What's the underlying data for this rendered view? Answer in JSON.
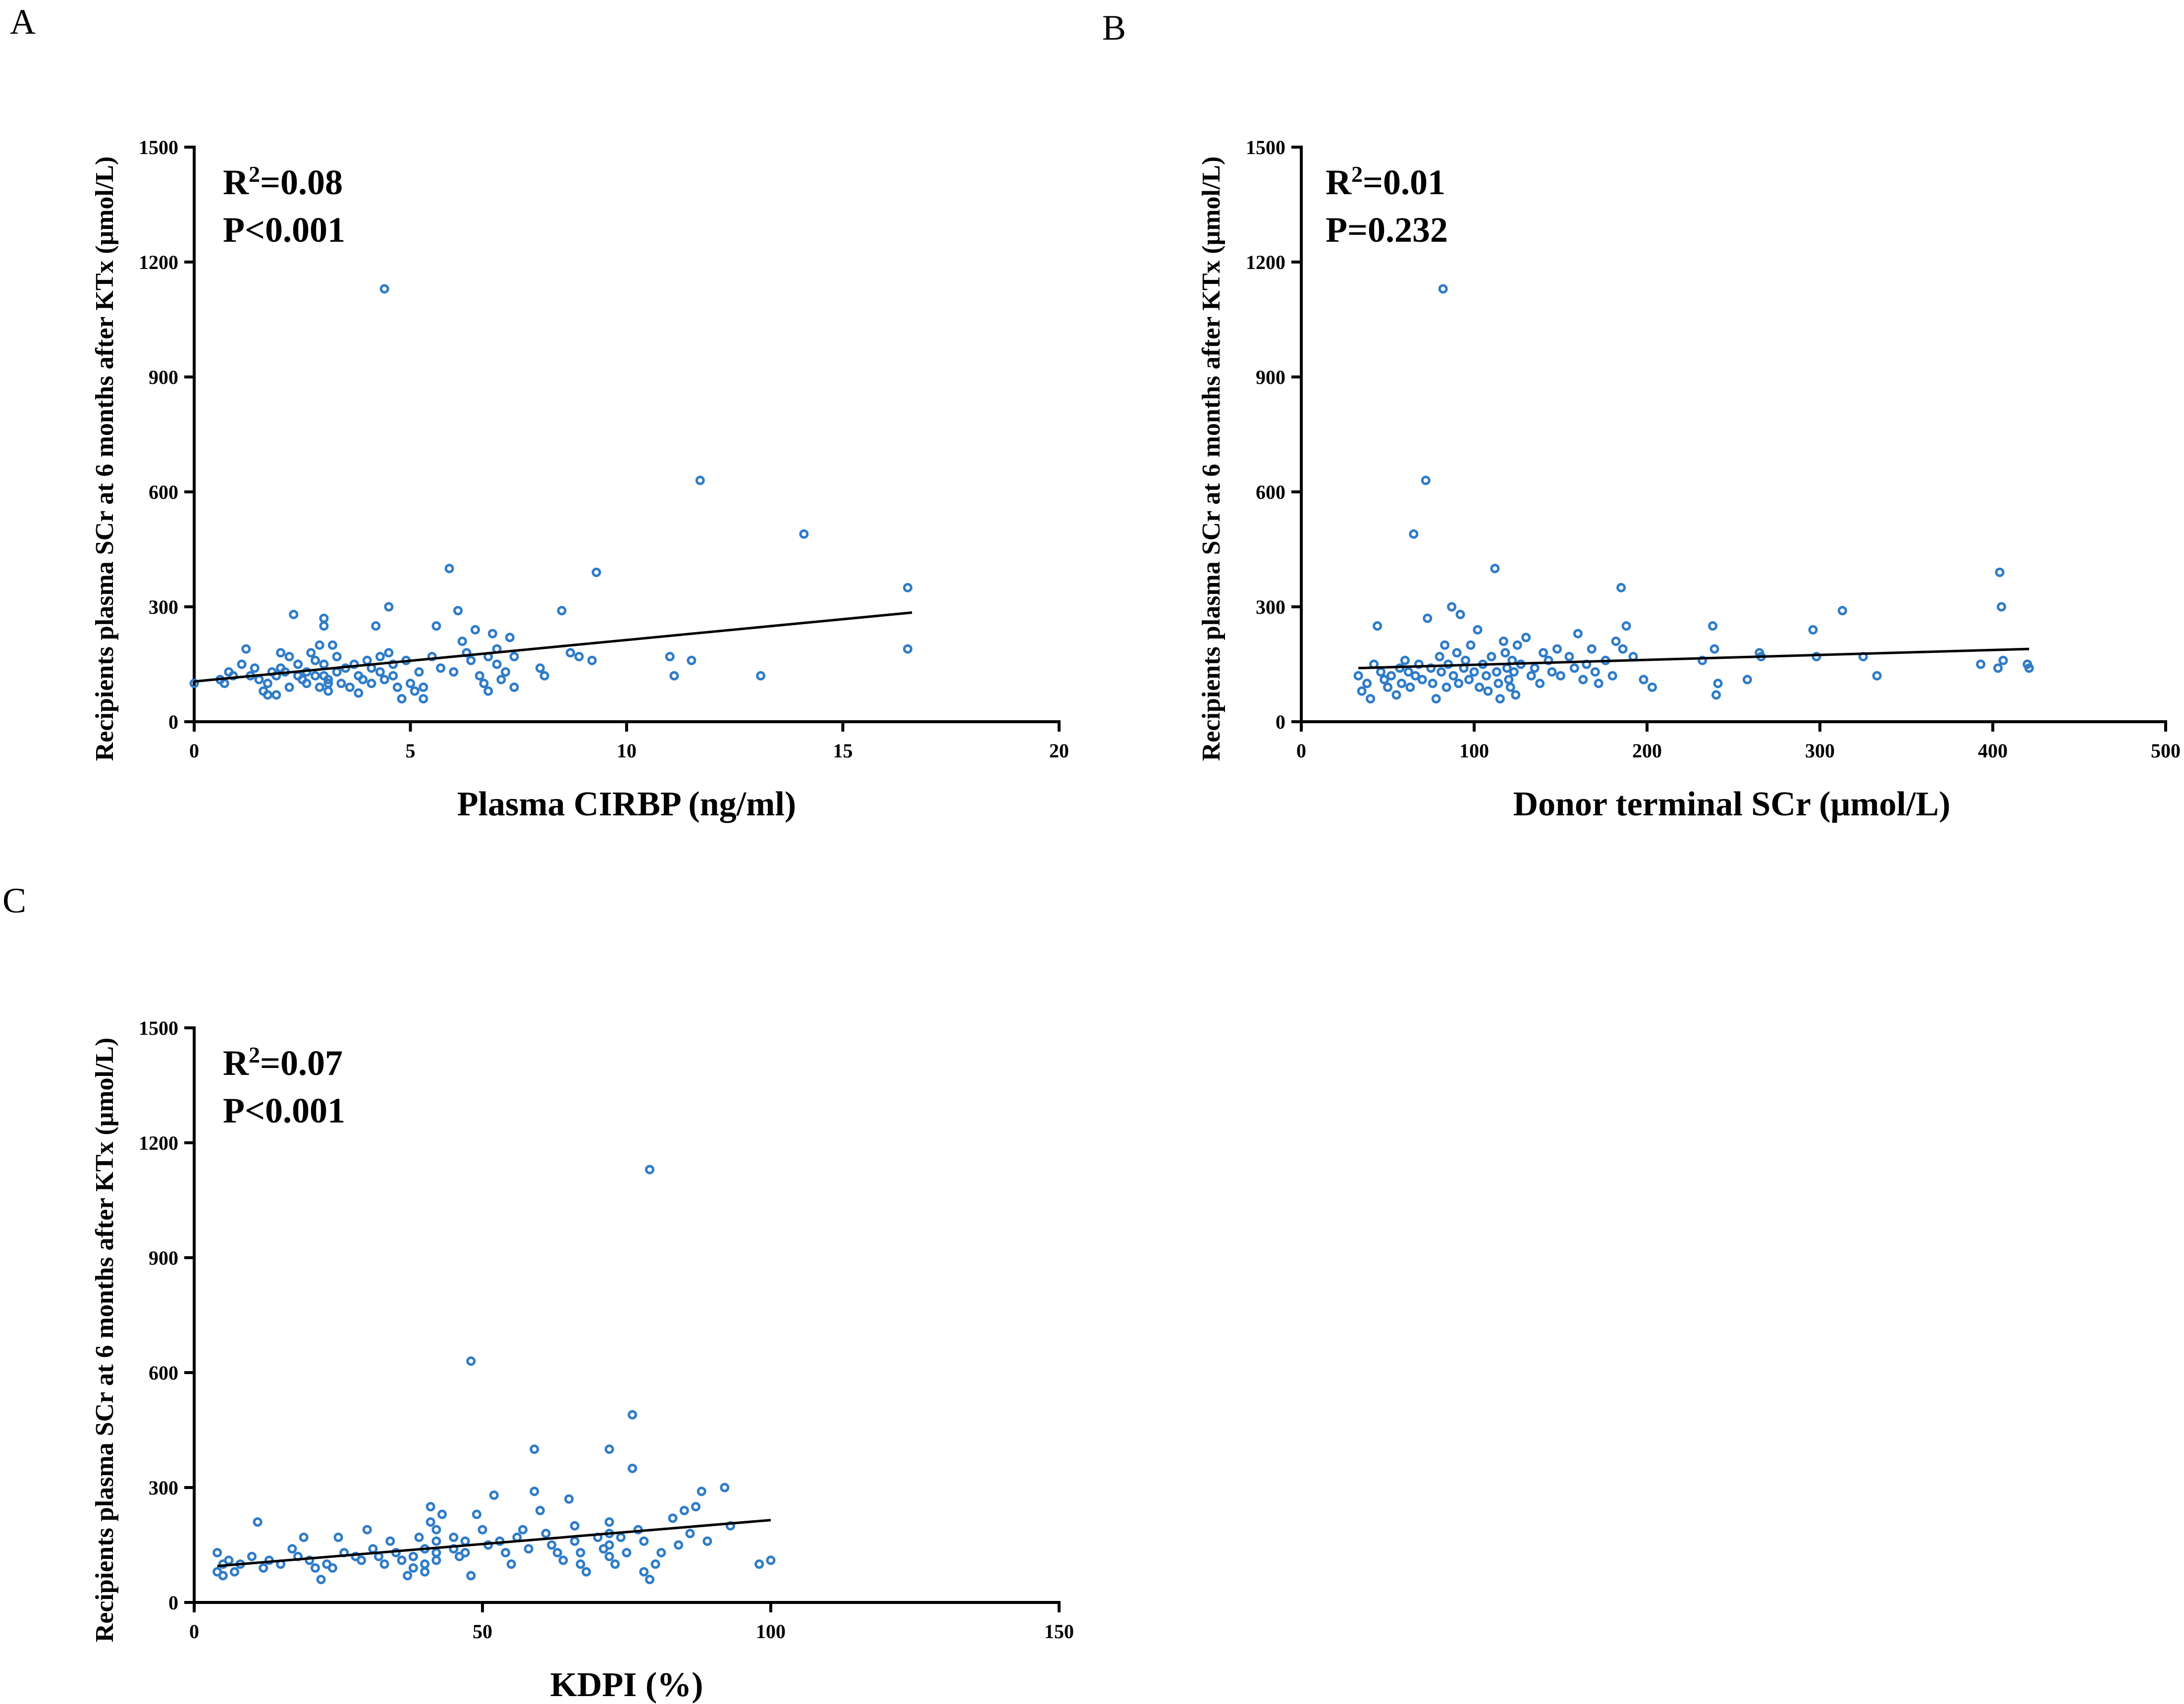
{
  "figure": {
    "marker_color": "#2f7cc8",
    "line_color": "#000000",
    "y_axis_title": "Recipients plasma SCr at 6 months after KTx (μmol/L)"
  },
  "chart_data": [
    {
      "panel": "A",
      "type": "scatter",
      "xlabel": "Plasma CIRBP (ng/ml)",
      "ylabel": "Recipients plasma SCr at 6 months after KTx (μmol/L)",
      "xlim": [
        0,
        20
      ],
      "ylim": [
        0,
        1500
      ],
      "xticks": [
        0,
        5,
        10,
        15,
        20
      ],
      "yticks": [
        0,
        300,
        600,
        900,
        1200,
        1500
      ],
      "stats": {
        "r2_prefix": "R",
        "r2_sup": "2",
        "r2_value": "=0.08",
        "p_text": "P<0.001"
      },
      "regression": {
        "x": [
          0,
          16.6
        ],
        "y": [
          105,
          285
        ]
      },
      "points": [
        [
          0.0,
          100
        ],
        [
          0.6,
          110
        ],
        [
          0.7,
          100
        ],
        [
          0.8,
          130
        ],
        [
          0.9,
          120
        ],
        [
          1.1,
          150
        ],
        [
          1.2,
          190
        ],
        [
          1.3,
          120
        ],
        [
          1.4,
          140
        ],
        [
          1.5,
          110
        ],
        [
          1.6,
          80
        ],
        [
          1.7,
          100
        ],
        [
          1.7,
          70
        ],
        [
          1.8,
          130
        ],
        [
          1.9,
          120
        ],
        [
          1.9,
          70
        ],
        [
          2.0,
          140
        ],
        [
          2.0,
          180
        ],
        [
          2.1,
          130
        ],
        [
          2.2,
          170
        ],
        [
          2.2,
          90
        ],
        [
          2.3,
          280
        ],
        [
          2.4,
          120
        ],
        [
          2.4,
          150
        ],
        [
          2.5,
          110
        ],
        [
          2.6,
          100
        ],
        [
          2.6,
          130
        ],
        [
          2.7,
          180
        ],
        [
          2.8,
          120
        ],
        [
          2.8,
          160
        ],
        [
          2.9,
          200
        ],
        [
          2.9,
          90
        ],
        [
          3.0,
          270
        ],
        [
          3.0,
          250
        ],
        [
          3.0,
          150
        ],
        [
          3.0,
          120
        ],
        [
          3.1,
          110
        ],
        [
          3.1,
          100
        ],
        [
          3.1,
          80
        ],
        [
          3.2,
          200
        ],
        [
          3.3,
          170
        ],
        [
          3.3,
          130
        ],
        [
          3.4,
          100
        ],
        [
          3.5,
          140
        ],
        [
          3.6,
          90
        ],
        [
          3.7,
          150
        ],
        [
          3.8,
          120
        ],
        [
          3.8,
          75
        ],
        [
          3.9,
          110
        ],
        [
          4.0,
          160
        ],
        [
          4.1,
          140
        ],
        [
          4.1,
          100
        ],
        [
          4.2,
          250
        ],
        [
          4.3,
          170
        ],
        [
          4.3,
          130
        ],
        [
          4.4,
          1130
        ],
        [
          4.4,
          110
        ],
        [
          4.5,
          300
        ],
        [
          4.5,
          180
        ],
        [
          4.6,
          150
        ],
        [
          4.6,
          120
        ],
        [
          4.7,
          90
        ],
        [
          4.8,
          60
        ],
        [
          4.9,
          160
        ],
        [
          5.0,
          100
        ],
        [
          5.1,
          80
        ],
        [
          5.2,
          130
        ],
        [
          5.3,
          90
        ],
        [
          5.3,
          60
        ],
        [
          5.5,
          170
        ],
        [
          5.6,
          250
        ],
        [
          5.7,
          140
        ],
        [
          5.9,
          400
        ],
        [
          6.0,
          130
        ],
        [
          6.1,
          290
        ],
        [
          6.2,
          210
        ],
        [
          6.3,
          180
        ],
        [
          6.4,
          160
        ],
        [
          6.5,
          240
        ],
        [
          6.6,
          120
        ],
        [
          6.7,
          100
        ],
        [
          6.8,
          170
        ],
        [
          6.8,
          80
        ],
        [
          6.9,
          230
        ],
        [
          7.0,
          190
        ],
        [
          7.0,
          150
        ],
        [
          7.1,
          110
        ],
        [
          7.2,
          130
        ],
        [
          7.3,
          220
        ],
        [
          7.4,
          170
        ],
        [
          7.4,
          90
        ],
        [
          8.0,
          140
        ],
        [
          8.1,
          120
        ],
        [
          8.5,
          290
        ],
        [
          8.7,
          180
        ],
        [
          8.9,
          170
        ],
        [
          9.2,
          160
        ],
        [
          9.3,
          390
        ],
        [
          11.0,
          170
        ],
        [
          11.1,
          120
        ],
        [
          11.5,
          160
        ],
        [
          11.7,
          630
        ],
        [
          13.1,
          120
        ],
        [
          14.1,
          490
        ],
        [
          16.5,
          350
        ],
        [
          16.5,
          190
        ]
      ]
    },
    {
      "panel": "B",
      "type": "scatter",
      "xlabel": "Donor terminal SCr (μmol/L)",
      "ylabel": "Recipients plasma SCr at 6 months after KTx (μmol/L)",
      "xlim": [
        0,
        500
      ],
      "ylim": [
        0,
        1500
      ],
      "xticks": [
        0,
        100,
        200,
        300,
        400,
        500
      ],
      "yticks": [
        0,
        300,
        600,
        900,
        1200,
        1500
      ],
      "stats": {
        "r2_prefix": "R",
        "r2_sup": "2",
        "r2_value": "=0.01",
        "p_text": "P=0.232"
      },
      "regression": {
        "x": [
          33,
          421
        ],
        "y": [
          140,
          190
        ]
      },
      "points": [
        [
          33,
          120
        ],
        [
          35,
          80
        ],
        [
          38,
          100
        ],
        [
          40,
          60
        ],
        [
          42,
          150
        ],
        [
          44,
          250
        ],
        [
          46,
          130
        ],
        [
          48,
          110
        ],
        [
          50,
          90
        ],
        [
          52,
          120
        ],
        [
          55,
          70
        ],
        [
          57,
          140
        ],
        [
          58,
          100
        ],
        [
          60,
          160
        ],
        [
          62,
          130
        ],
        [
          63,
          90
        ],
        [
          65,
          490
        ],
        [
          66,
          120
        ],
        [
          68,
          150
        ],
        [
          70,
          110
        ],
        [
          72,
          630
        ],
        [
          73,
          270
        ],
        [
          75,
          140
        ],
        [
          76,
          100
        ],
        [
          78,
          60
        ],
        [
          80,
          170
        ],
        [
          81,
          130
        ],
        [
          82,
          1130
        ],
        [
          83,
          200
        ],
        [
          84,
          90
        ],
        [
          85,
          150
        ],
        [
          87,
          300
        ],
        [
          88,
          120
        ],
        [
          90,
          180
        ],
        [
          91,
          100
        ],
        [
          92,
          280
        ],
        [
          94,
          140
        ],
        [
          95,
          160
        ],
        [
          97,
          110
        ],
        [
          98,
          200
        ],
        [
          100,
          130
        ],
        [
          102,
          240
        ],
        [
          103,
          90
        ],
        [
          105,
          150
        ],
        [
          107,
          120
        ],
        [
          108,
          80
        ],
        [
          110,
          170
        ],
        [
          112,
          400
        ],
        [
          113,
          130
        ],
        [
          114,
          100
        ],
        [
          115,
          60
        ],
        [
          117,
          210
        ],
        [
          118,
          180
        ],
        [
          119,
          140
        ],
        [
          120,
          110
        ],
        [
          121,
          90
        ],
        [
          122,
          160
        ],
        [
          123,
          130
        ],
        [
          124,
          70
        ],
        [
          125,
          200
        ],
        [
          127,
          150
        ],
        [
          130,
          220
        ],
        [
          133,
          120
        ],
        [
          135,
          140
        ],
        [
          138,
          100
        ],
        [
          140,
          180
        ],
        [
          143,
          160
        ],
        [
          145,
          130
        ],
        [
          148,
          190
        ],
        [
          150,
          120
        ],
        [
          155,
          170
        ],
        [
          158,
          140
        ],
        [
          160,
          230
        ],
        [
          163,
          110
        ],
        [
          165,
          150
        ],
        [
          168,
          190
        ],
        [
          170,
          130
        ],
        [
          172,
          100
        ],
        [
          176,
          160
        ],
        [
          180,
          120
        ],
        [
          182,
          210
        ],
        [
          185,
          350
        ],
        [
          186,
          190
        ],
        [
          188,
          250
        ],
        [
          192,
          170
        ],
        [
          198,
          110
        ],
        [
          203,
          90
        ],
        [
          232,
          160
        ],
        [
          238,
          250
        ],
        [
          239,
          190
        ],
        [
          240,
          70
        ],
        [
          241,
          100
        ],
        [
          258,
          110
        ],
        [
          265,
          180
        ],
        [
          266,
          170
        ],
        [
          296,
          240
        ],
        [
          298,
          170
        ],
        [
          313,
          290
        ],
        [
          325,
          170
        ],
        [
          333,
          120
        ],
        [
          393,
          150
        ],
        [
          403,
          140
        ],
        [
          404,
          390
        ],
        [
          405,
          300
        ],
        [
          406,
          160
        ],
        [
          420,
          150
        ],
        [
          421,
          140
        ]
      ]
    },
    {
      "panel": "C",
      "type": "scatter",
      "xlabel": "KDPI (%)",
      "ylabel": "Recipients plasma SCr at 6 months after KTx (μmol/L)",
      "xlim": [
        0,
        150
      ],
      "ylim": [
        0,
        1500
      ],
      "xticks": [
        0,
        50,
        100,
        150
      ],
      "yticks": [
        0,
        300,
        600,
        900,
        1200,
        1500
      ],
      "stats": {
        "r2_prefix": "R",
        "r2_sup": "2",
        "r2_value": "=0.07",
        "p_text": "P<0.001"
      },
      "regression": {
        "x": [
          4,
          100
        ],
        "y": [
          95,
          215
        ]
      },
      "points": [
        [
          4,
          130
        ],
        [
          4,
          80
        ],
        [
          5,
          100
        ],
        [
          5,
          70
        ],
        [
          6,
          110
        ],
        [
          7,
          80
        ],
        [
          8,
          100
        ],
        [
          10,
          120
        ],
        [
          11,
          210
        ],
        [
          12,
          90
        ],
        [
          13,
          110
        ],
        [
          15,
          100
        ],
        [
          17,
          140
        ],
        [
          18,
          120
        ],
        [
          19,
          170
        ],
        [
          20,
          110
        ],
        [
          21,
          90
        ],
        [
          22,
          60
        ],
        [
          23,
          100
        ],
        [
          24,
          90
        ],
        [
          25,
          170
        ],
        [
          26,
          130
        ],
        [
          28,
          120
        ],
        [
          29,
          110
        ],
        [
          30,
          190
        ],
        [
          31,
          140
        ],
        [
          32,
          120
        ],
        [
          33,
          100
        ],
        [
          34,
          160
        ],
        [
          35,
          130
        ],
        [
          36,
          110
        ],
        [
          37,
          70
        ],
        [
          38,
          90
        ],
        [
          38,
          120
        ],
        [
          39,
          170
        ],
        [
          40,
          140
        ],
        [
          40,
          100
        ],
        [
          40,
          80
        ],
        [
          41,
          250
        ],
        [
          41,
          210
        ],
        [
          42,
          190
        ],
        [
          42,
          160
        ],
        [
          42,
          130
        ],
        [
          42,
          110
        ],
        [
          43,
          230
        ],
        [
          45,
          170
        ],
        [
          45,
          140
        ],
        [
          46,
          120
        ],
        [
          47,
          160
        ],
        [
          47,
          130
        ],
        [
          48,
          630
        ],
        [
          48,
          70
        ],
        [
          49,
          230
        ],
        [
          50,
          190
        ],
        [
          51,
          150
        ],
        [
          52,
          280
        ],
        [
          53,
          160
        ],
        [
          54,
          130
        ],
        [
          55,
          100
        ],
        [
          56,
          170
        ],
        [
          57,
          190
        ],
        [
          58,
          140
        ],
        [
          59,
          400
        ],
        [
          59,
          290
        ],
        [
          60,
          240
        ],
        [
          61,
          180
        ],
        [
          62,
          150
        ],
        [
          63,
          130
        ],
        [
          64,
          110
        ],
        [
          65,
          270
        ],
        [
          66,
          200
        ],
        [
          66,
          160
        ],
        [
          67,
          130
        ],
        [
          67,
          100
        ],
        [
          68,
          80
        ],
        [
          70,
          170
        ],
        [
          71,
          140
        ],
        [
          72,
          400
        ],
        [
          72,
          210
        ],
        [
          72,
          180
        ],
        [
          72,
          150
        ],
        [
          72,
          120
        ],
        [
          73,
          100
        ],
        [
          74,
          170
        ],
        [
          75,
          130
        ],
        [
          76,
          490
        ],
        [
          76,
          350
        ],
        [
          77,
          190
        ],
        [
          78,
          160
        ],
        [
          78,
          80
        ],
        [
          79,
          1130
        ],
        [
          79,
          60
        ],
        [
          80,
          100
        ],
        [
          81,
          130
        ],
        [
          83,
          220
        ],
        [
          84,
          150
        ],
        [
          85,
          240
        ],
        [
          86,
          180
        ],
        [
          87,
          250
        ],
        [
          88,
          290
        ],
        [
          89,
          160
        ],
        [
          92,
          300
        ],
        [
          93,
          200
        ],
        [
          98,
          100
        ],
        [
          100,
          110
        ]
      ]
    }
  ]
}
